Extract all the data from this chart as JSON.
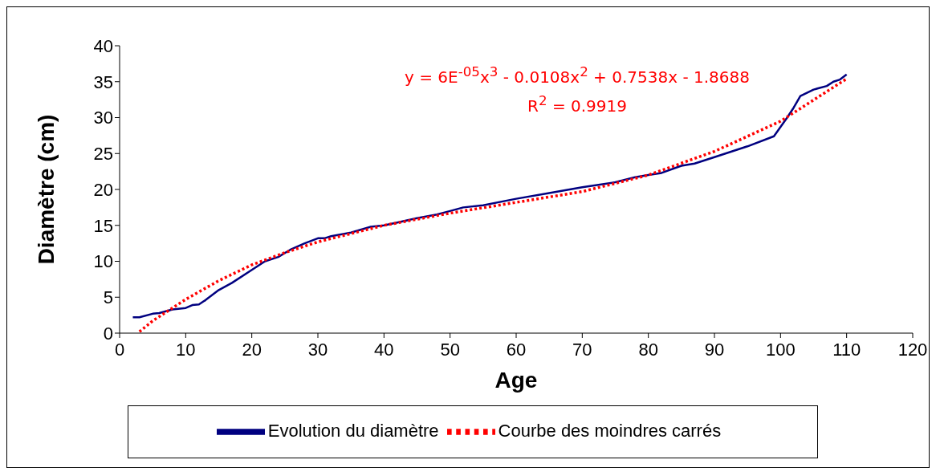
{
  "chart_data": {
    "type": "line",
    "xlabel": "Age",
    "ylabel": "Diamètre (cm)",
    "xlim": [
      0,
      120
    ],
    "xticks": [
      0,
      10,
      20,
      30,
      40,
      50,
      60,
      70,
      80,
      90,
      100,
      110,
      120
    ],
    "ylim": [
      0,
      40
    ],
    "yticks": [
      0,
      5,
      10,
      15,
      20,
      25,
      30,
      35,
      40
    ],
    "grid": false,
    "legend": "bottom",
    "marker": "none",
    "annotations": [
      "y = 6E$^{-05}$x$^{3}$ - 0.0108x$^{2}$ + 0.7538x - 1.8688",
      "R$^{2}$ = 0.9919"
    ],
    "series": [
      {
        "name": "Evolution du diamètre",
        "color": "#000080",
        "line_style": "solid",
        "x": [
          2,
          3,
          5,
          6,
          8,
          10,
          11,
          12,
          13,
          15,
          17,
          20,
          22,
          24,
          26,
          28,
          30,
          31,
          32,
          35,
          38,
          40,
          42,
          45,
          48,
          50,
          52,
          55,
          60,
          65,
          70,
          75,
          78,
          80,
          82,
          85,
          87,
          90,
          95,
          99,
          101,
          102,
          103,
          105,
          107,
          108,
          109,
          110
        ],
        "values": [
          2.2,
          2.2,
          2.7,
          2.8,
          3.3,
          3.5,
          3.9,
          4,
          4.6,
          6,
          7,
          8.8,
          10,
          10.6,
          11.7,
          12.5,
          13.2,
          13.2,
          13.5,
          14,
          14.8,
          15,
          15.4,
          16,
          16.5,
          17,
          17.5,
          17.8,
          18.7,
          19.5,
          20.3,
          21,
          21.7,
          22,
          22.3,
          23.3,
          23.6,
          24.5,
          26,
          27.4,
          30,
          31.4,
          33,
          33.9,
          34.4,
          35,
          35.3,
          36
        ]
      },
      {
        "name": "Courbe des moindres carrés",
        "color": "#ff0000",
        "line_style": "dotted",
        "x": [
          3,
          5,
          10,
          15,
          20,
          25,
          30,
          40,
          50,
          60,
          70,
          80,
          90,
          100,
          110
        ],
        "values": [
          0.2,
          1.7,
          4.7,
          7.3,
          9.5,
          11.2,
          12.7,
          15,
          16.7,
          18.2,
          19.7,
          22,
          25.3,
          29.5,
          35.4
        ]
      }
    ]
  }
}
